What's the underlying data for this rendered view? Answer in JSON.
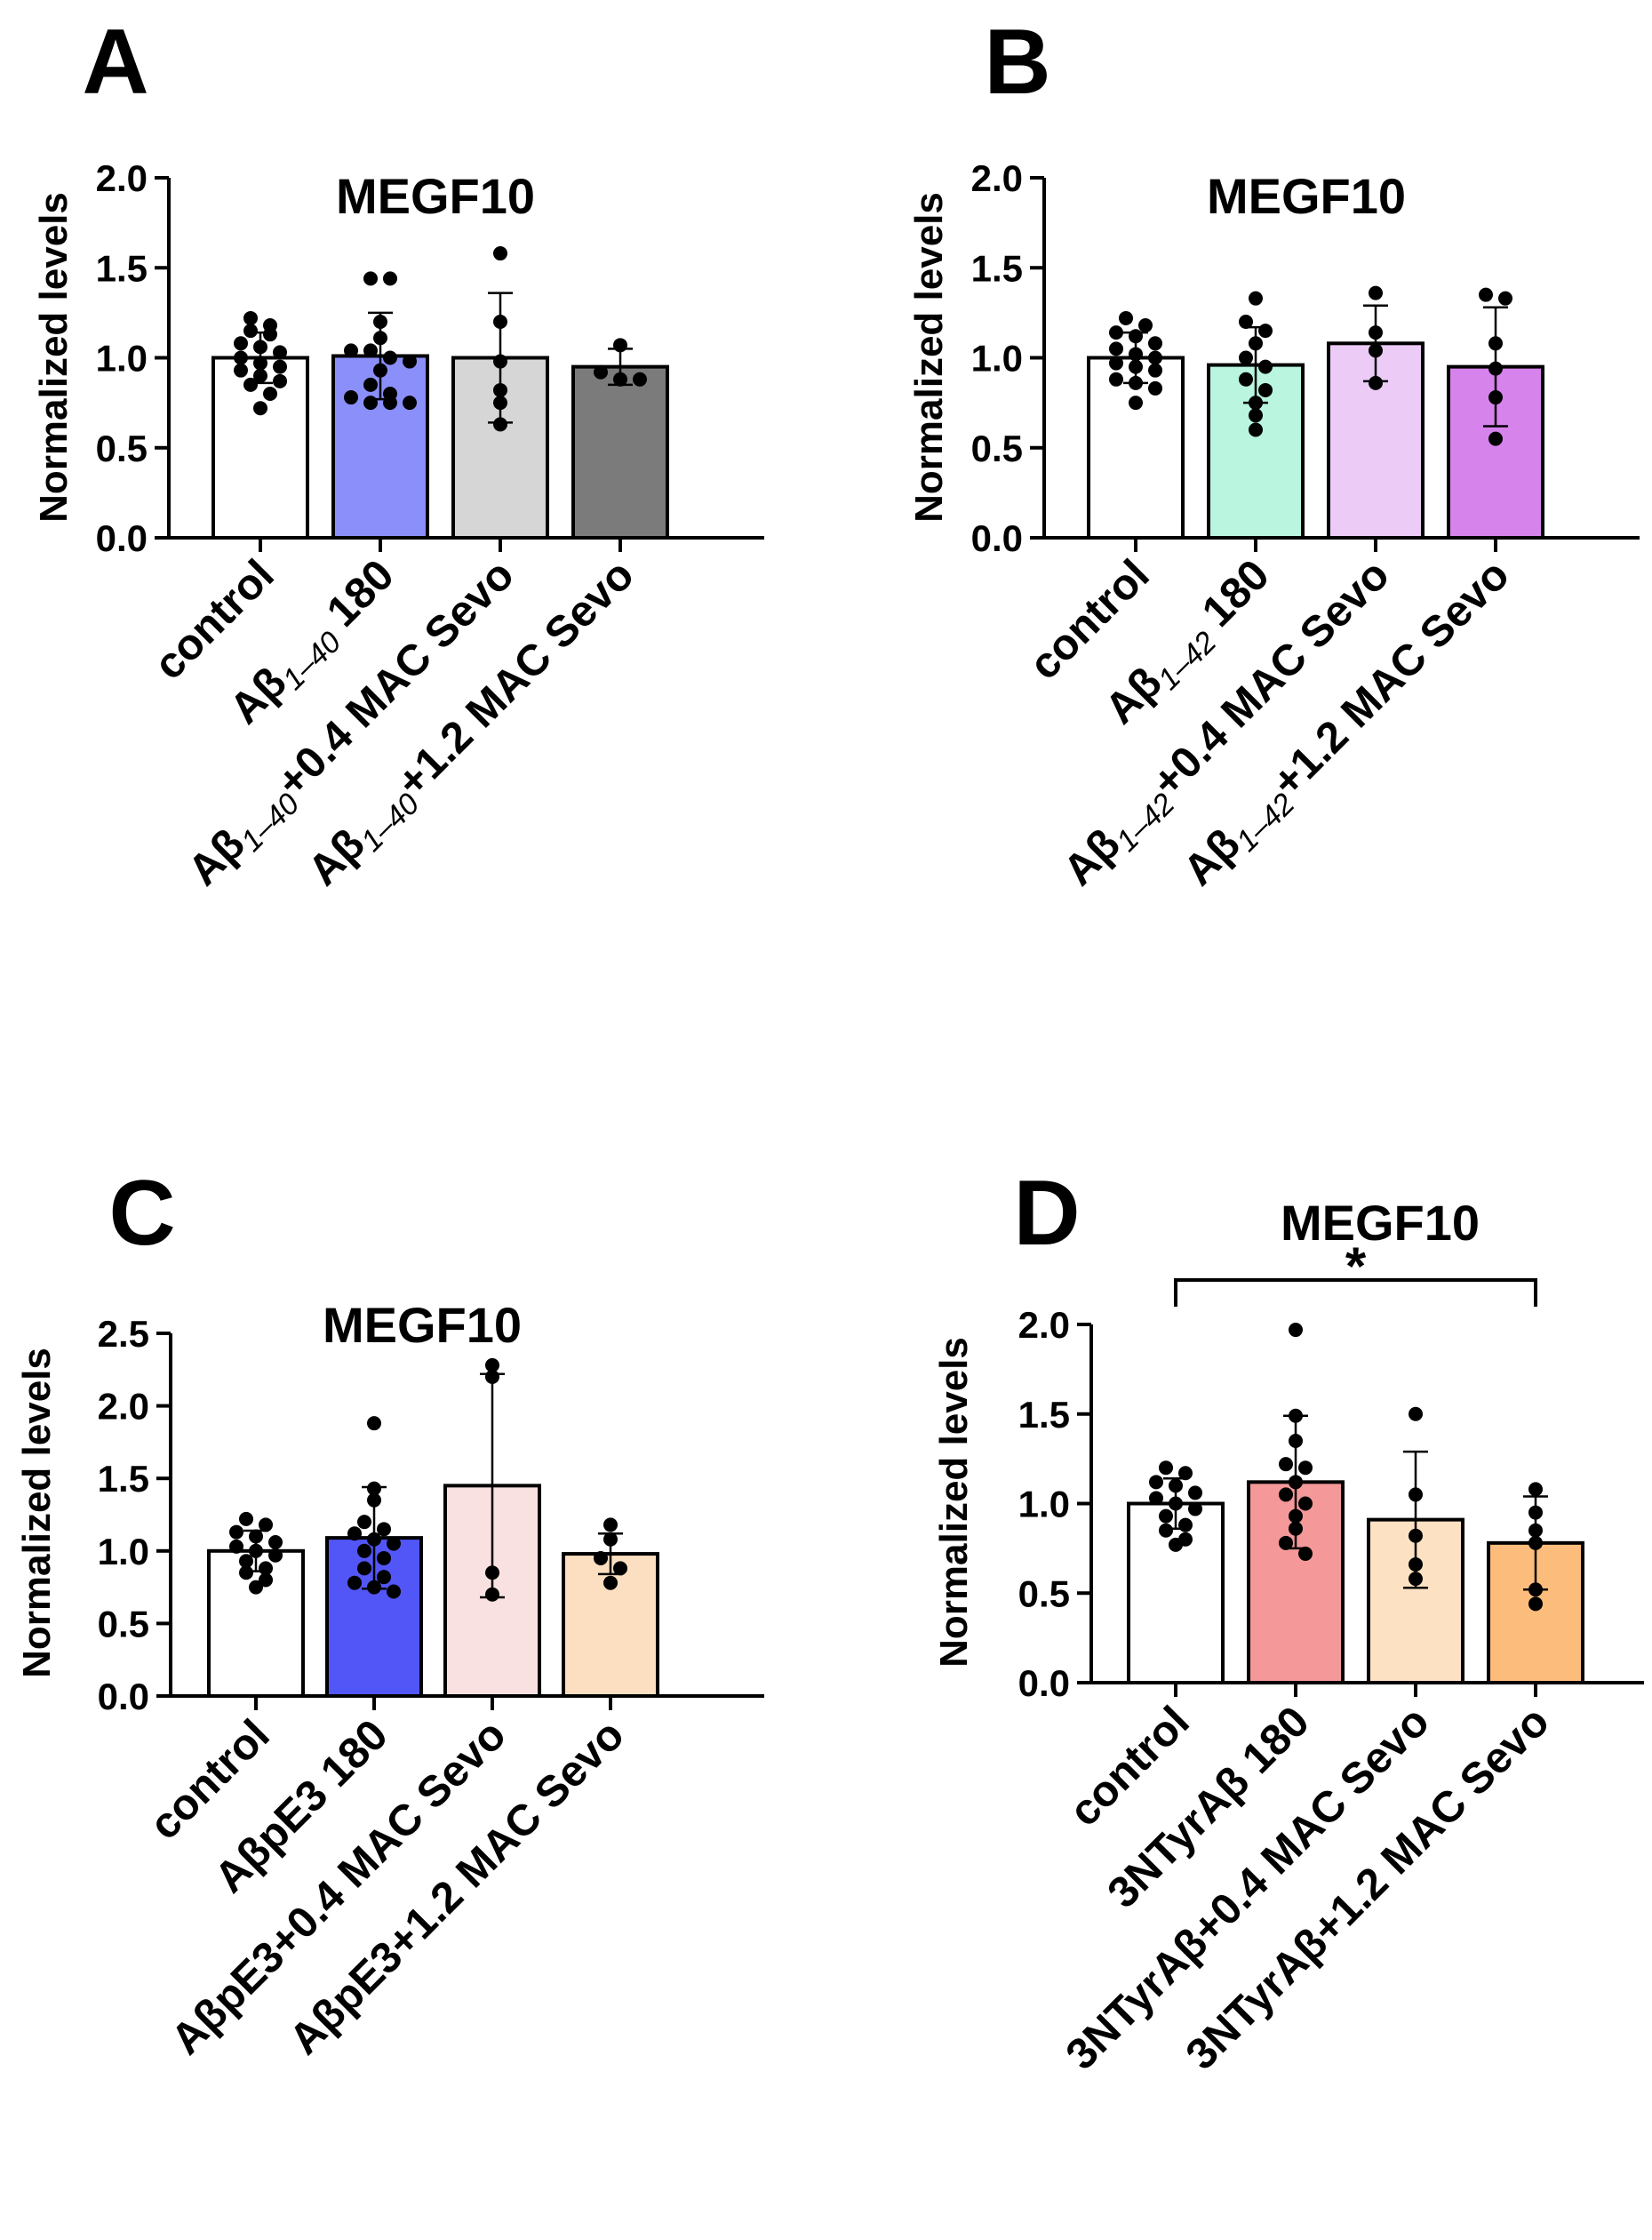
{
  "chart_data": [
    {
      "panel": "A",
      "type": "bar",
      "title": "MEGF10",
      "ylabel": "Normalized  levels",
      "xlabel": "",
      "ylim": [
        0,
        2.0
      ],
      "yticks": [
        "0.0",
        "0.5",
        "1.0",
        "1.5",
        "2.0"
      ],
      "categories": [
        {
          "main": "control",
          "sub": "",
          "suffix": ""
        },
        {
          "main": "Aβ",
          "sub": "1–40",
          "suffix": " 180"
        },
        {
          "main": "Aβ",
          "sub": "1–40",
          "suffix": "+0.4 MAC Sevo"
        },
        {
          "main": "Aβ",
          "sub": "1–40",
          "suffix": "+1.2 MAC Sevo"
        }
      ],
      "values": [
        1.0,
        1.01,
        1.0,
        0.95
      ],
      "sd": [
        0.14,
        0.24,
        0.36,
        0.1
      ],
      "colors": [
        "#ffffff",
        "#8b8ffa",
        "#d6d6d6",
        "#7b7b7b"
      ],
      "points": [
        [
          1.22,
          1.18,
          1.15,
          1.13,
          1.08,
          1.06,
          1.03,
          1.0,
          0.97,
          0.95,
          0.93,
          0.9,
          0.87,
          0.85,
          0.8,
          0.72
        ],
        [
          1.44,
          1.44,
          1.2,
          1.11,
          1.04,
          1.04,
          1.0,
          0.98,
          0.93,
          0.85,
          0.8,
          0.78,
          0.75,
          0.75,
          0.75
        ],
        [
          1.58,
          1.2,
          0.98,
          0.82,
          0.75,
          0.63
        ],
        [
          1.07,
          0.92,
          0.88,
          0.88
        ]
      ],
      "significance": null
    },
    {
      "panel": "B",
      "type": "bar",
      "title": "MEGF10",
      "ylabel": "Normalized  levels",
      "xlabel": "",
      "ylim": [
        0,
        2.0
      ],
      "yticks": [
        "0.0",
        "0.5",
        "1.0",
        "1.5",
        "2.0"
      ],
      "categories": [
        {
          "main": "control",
          "sub": "",
          "suffix": ""
        },
        {
          "main": "Aβ",
          "sub": "1–42",
          "suffix": " 180"
        },
        {
          "main": "Aβ",
          "sub": "1–42",
          "suffix": "+0.4 MAC Sevo"
        },
        {
          "main": "Aβ",
          "sub": "1–42",
          "suffix": "+1.2 MAC Sevo"
        }
      ],
      "values": [
        1.0,
        0.96,
        1.08,
        0.95
      ],
      "sd": [
        0.14,
        0.21,
        0.21,
        0.33
      ],
      "colors": [
        "#ffffff",
        "#b9f5df",
        "#ecccf6",
        "#d783ec"
      ],
      "points": [
        [
          1.22,
          1.18,
          1.14,
          1.12,
          1.08,
          1.05,
          1.02,
          1.0,
          0.97,
          0.95,
          0.93,
          0.88,
          0.86,
          0.83,
          0.75
        ],
        [
          1.33,
          1.2,
          1.15,
          1.08,
          1.0,
          0.95,
          0.88,
          0.82,
          0.75,
          0.68,
          0.6
        ],
        [
          1.36,
          1.14,
          1.04,
          0.86
        ],
        [
          1.35,
          1.33,
          1.08,
          0.94,
          0.78,
          0.55
        ]
      ],
      "significance": null
    },
    {
      "panel": "C",
      "type": "bar",
      "title": "MEGF10",
      "ylabel": "Normalized  levels",
      "xlabel": "",
      "ylim": [
        0,
        2.5
      ],
      "yticks": [
        "0.0",
        "0.5",
        "1.0",
        "1.5",
        "2.0",
        "2.5"
      ],
      "categories": [
        {
          "main": "control",
          "sub": "",
          "suffix": ""
        },
        {
          "main": "AβpE3 180",
          "sub": "",
          "suffix": ""
        },
        {
          "main": "AβpE3+0.4 MAC Sevo",
          "sub": "",
          "suffix": ""
        },
        {
          "main": "AβpE3+1.2 MAC Sevo",
          "sub": "",
          "suffix": ""
        }
      ],
      "values": [
        1.0,
        1.09,
        1.45,
        0.98
      ],
      "sd": [
        0.14,
        0.35,
        0.77,
        0.14
      ],
      "colors": [
        "#ffffff",
        "#5356f6",
        "#fae1e1",
        "#fcdfc1"
      ],
      "points": [
        [
          1.22,
          1.18,
          1.13,
          1.1,
          1.06,
          1.03,
          1.0,
          0.97,
          0.93,
          0.88,
          0.85,
          0.8,
          0.75
        ],
        [
          1.88,
          1.43,
          1.35,
          1.2,
          1.15,
          1.12,
          1.08,
          1.05,
          1.0,
          0.95,
          0.88,
          0.82,
          0.78,
          0.75,
          0.72
        ],
        [
          2.28,
          2.2,
          0.85,
          0.7
        ],
        [
          1.18,
          1.08,
          0.95,
          0.88,
          0.78
        ]
      ],
      "significance": null
    },
    {
      "panel": "D",
      "type": "bar",
      "title": "MEGF10",
      "ylabel": "Normalized  levels",
      "xlabel": "",
      "ylim": [
        0,
        2.0
      ],
      "yticks": [
        "0.0",
        "0.5",
        "1.0",
        "1.5",
        "2.0"
      ],
      "categories": [
        {
          "main": "control",
          "sub": "",
          "suffix": ""
        },
        {
          "main": "3NTyrAβ 180",
          "sub": "",
          "suffix": ""
        },
        {
          "main": "3NTyrAβ+0.4 MAC Sevo",
          "sub": "",
          "suffix": ""
        },
        {
          "main": "3NTyrAβ+1.2 MAC Sevo",
          "sub": "",
          "suffix": ""
        }
      ],
      "values": [
        1.0,
        1.12,
        0.91,
        0.78
      ],
      "sd": [
        0.14,
        0.37,
        0.38,
        0.26
      ],
      "colors": [
        "#ffffff",
        "#f4989a",
        "#fde1c3",
        "#fcbd7c"
      ],
      "points": [
        [
          1.2,
          1.17,
          1.12,
          1.1,
          1.06,
          1.03,
          1.0,
          0.97,
          0.93,
          0.88,
          0.85,
          0.8,
          0.77
        ],
        [
          1.97,
          1.49,
          1.35,
          1.22,
          1.2,
          1.12,
          1.05,
          1.0,
          0.93,
          0.86,
          0.78,
          0.72
        ],
        [
          1.5,
          1.05,
          0.82,
          0.66,
          0.58
        ],
        [
          1.08,
          0.95,
          0.85,
          0.78,
          0.52,
          0.44
        ]
      ],
      "significance": {
        "from": 0,
        "to": 3,
        "label": "*"
      }
    }
  ]
}
